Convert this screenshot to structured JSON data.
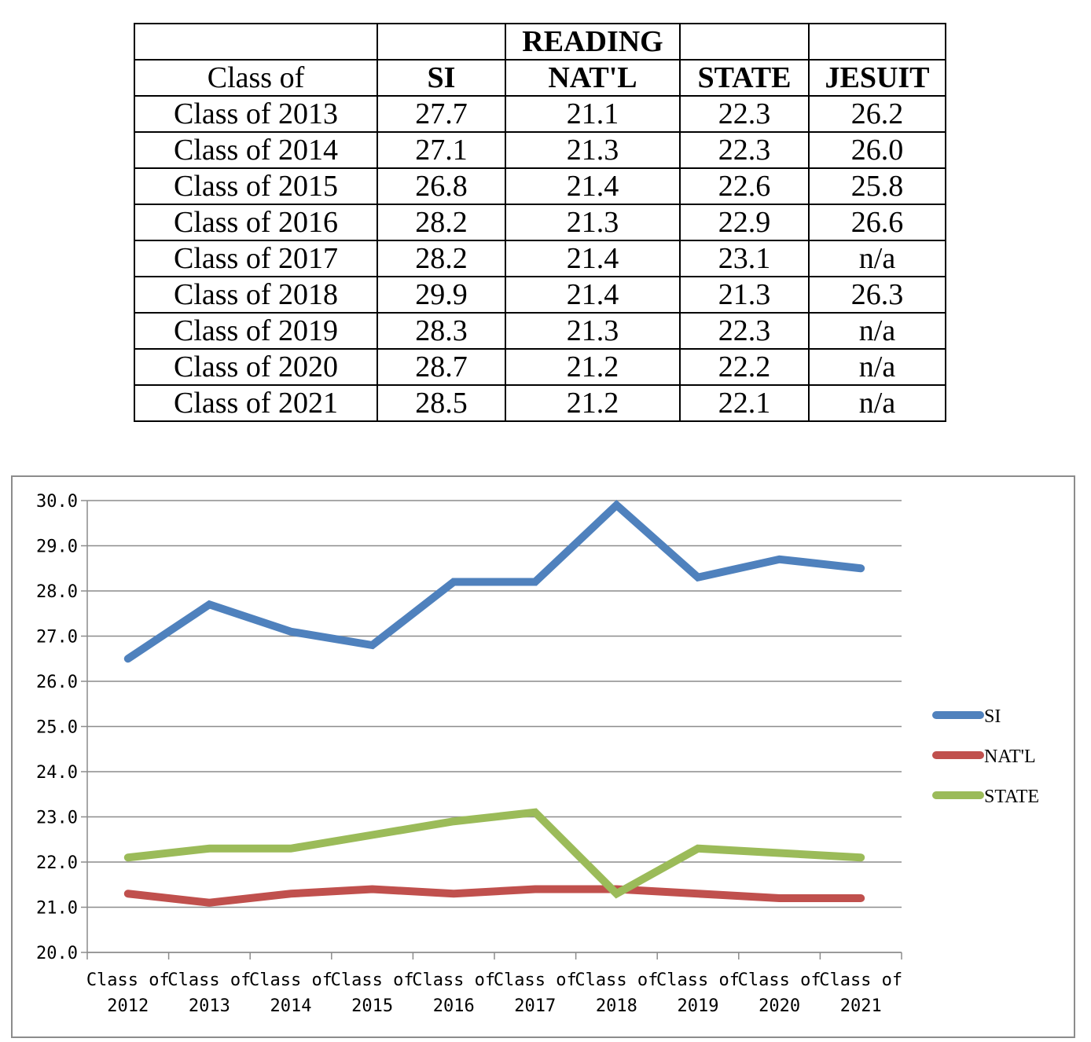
{
  "table": {
    "header_top": [
      "",
      "",
      "READING",
      "",
      ""
    ],
    "header": [
      "Class of",
      "SI",
      "NAT'L",
      "STATE",
      "JESUIT"
    ],
    "rows": [
      [
        "Class of 2013",
        "27.7",
        "21.1",
        "22.3",
        "26.2"
      ],
      [
        "Class of 2014",
        "27.1",
        "21.3",
        "22.3",
        "26.0"
      ],
      [
        "Class of 2015",
        "26.8",
        "21.4",
        "22.6",
        "25.8"
      ],
      [
        "Class of 2016",
        "28.2",
        "21.3",
        "22.9",
        "26.6"
      ],
      [
        "Class of 2017",
        "28.2",
        "21.4",
        "23.1",
        "n/a"
      ],
      [
        "Class of 2018",
        "29.9",
        "21.4",
        "21.3",
        "26.3"
      ],
      [
        "Class of 2019",
        "28.3",
        "21.3",
        "22.3",
        "n/a"
      ],
      [
        "Class of 2020",
        "28.7",
        "21.2",
        "22.2",
        "n/a"
      ],
      [
        "Class of 2021",
        "28.5",
        "21.2",
        "22.1",
        "n/a"
      ]
    ]
  },
  "chart_data": {
    "type": "line",
    "title": "",
    "xlabel": "",
    "ylabel": "",
    "categories": [
      [
        "Class of",
        "2012"
      ],
      [
        "Class of",
        "2013"
      ],
      [
        "Class of",
        "2014"
      ],
      [
        "Class of",
        "2015"
      ],
      [
        "Class of",
        "2016"
      ],
      [
        "Class of",
        "2017"
      ],
      [
        "Class of",
        "2018"
      ],
      [
        "Class of",
        "2019"
      ],
      [
        "Class of",
        "2020"
      ],
      [
        "Class of",
        "2021"
      ]
    ],
    "ylim": [
      20.0,
      30.0
    ],
    "yticks": [
      "20.0",
      "21.0",
      "22.0",
      "23.0",
      "24.0",
      "25.0",
      "26.0",
      "27.0",
      "28.0",
      "29.0",
      "30.0"
    ],
    "grid": true,
    "legend_position": "right",
    "series": [
      {
        "name": "SI",
        "color": "#4f81bd",
        "values": [
          26.5,
          27.7,
          27.1,
          26.8,
          28.2,
          28.2,
          29.9,
          28.3,
          28.7,
          28.5
        ]
      },
      {
        "name": "NAT'L",
        "color": "#c0504d",
        "values": [
          21.3,
          21.1,
          21.3,
          21.4,
          21.3,
          21.4,
          21.4,
          21.3,
          21.2,
          21.2
        ]
      },
      {
        "name": "STATE",
        "color": "#9bbb59",
        "values": [
          22.1,
          22.3,
          22.3,
          22.6,
          22.9,
          23.1,
          21.3,
          22.3,
          22.2,
          22.1
        ]
      }
    ]
  }
}
